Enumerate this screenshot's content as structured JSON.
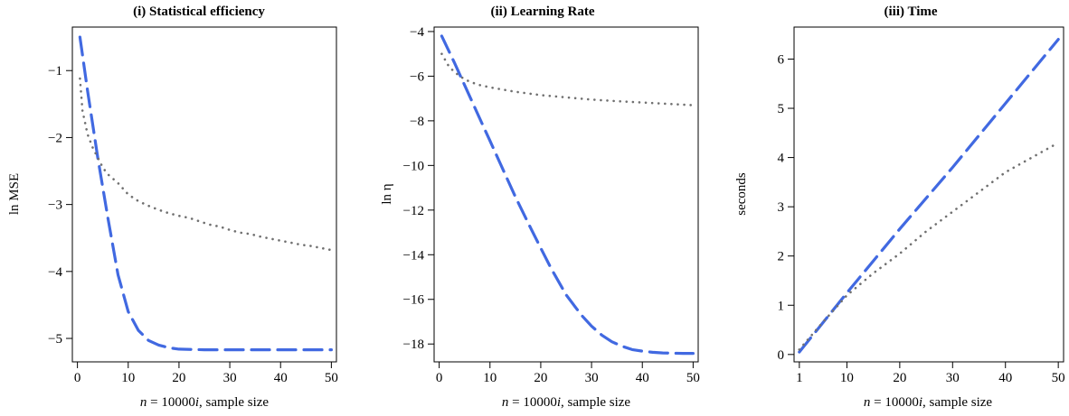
{
  "chart_data": [
    {
      "type": "line",
      "title": "(i) Statistical efficiency",
      "xlabel": {
        "pre": "n",
        "mid": " = 10000",
        "var": "i",
        "post": ", sample size"
      },
      "ylabel": "ln MSE",
      "xlim": [
        -1,
        51
      ],
      "ylim": [
        -5.35,
        -0.35
      ],
      "xticks": [
        0,
        10,
        20,
        30,
        40,
        50
      ],
      "yticks": [
        -5,
        -4,
        -3,
        -2,
        -1
      ],
      "ytick_labels": [
        "−5",
        "−4",
        "−3",
        "−2",
        "−1"
      ],
      "series": [
        {
          "style": "dashed",
          "color": "#4169e1",
          "x": [
            0.5,
            2,
            4,
            6,
            8,
            10,
            12,
            14,
            16,
            18,
            20,
            25,
            30,
            35,
            40,
            45,
            50
          ],
          "y": [
            -0.5,
            -1.3,
            -2.3,
            -3.2,
            -4.05,
            -4.6,
            -4.88,
            -5.03,
            -5.1,
            -5.14,
            -5.16,
            -5.17,
            -5.17,
            -5.17,
            -5.17,
            -5.17,
            -5.17
          ]
        },
        {
          "style": "dotted",
          "color": "#707070",
          "x": [
            0.5,
            1,
            2,
            3,
            4,
            5,
            6,
            8,
            10,
            12,
            14,
            16,
            18,
            20,
            22,
            24,
            26,
            28,
            30,
            32,
            34,
            36,
            38,
            40,
            42,
            44,
            46,
            48,
            50
          ],
          "y": [
            -1.12,
            -1.6,
            -1.95,
            -2.15,
            -2.3,
            -2.45,
            -2.55,
            -2.68,
            -2.85,
            -2.95,
            -3.02,
            -3.08,
            -3.13,
            -3.17,
            -3.2,
            -3.25,
            -3.3,
            -3.33,
            -3.38,
            -3.42,
            -3.44,
            -3.48,
            -3.51,
            -3.54,
            -3.57,
            -3.6,
            -3.62,
            -3.65,
            -3.68
          ]
        }
      ]
    },
    {
      "type": "line",
      "title": "(ii) Learning Rate",
      "xlabel": {
        "pre": "n",
        "mid": " = 10000",
        "var": "i",
        "post": ", sample size"
      },
      "ylabel": "ln η",
      "xlim": [
        -1,
        51
      ],
      "ylim": [
        -18.8,
        -3.8
      ],
      "xticks": [
        0,
        10,
        20,
        30,
        40,
        50
      ],
      "yticks": [
        -18,
        -16,
        -14,
        -12,
        -10,
        -8,
        -6,
        -4
      ],
      "ytick_labels": [
        "−18",
        "−16",
        "−14",
        "−12",
        "−10",
        "−8",
        "−6",
        "−4"
      ],
      "series": [
        {
          "style": "dashed",
          "color": "#4169e1",
          "x": [
            0.5,
            3,
            5,
            8,
            10,
            12,
            15,
            18,
            20,
            22,
            25,
            28,
            30,
            32,
            34,
            36,
            38,
            40,
            42,
            44,
            46,
            48,
            50
          ],
          "y": [
            -4.2,
            -5.4,
            -6.4,
            -7.9,
            -8.9,
            -9.9,
            -11.4,
            -12.8,
            -13.7,
            -14.6,
            -15.8,
            -16.7,
            -17.2,
            -17.6,
            -17.9,
            -18.1,
            -18.25,
            -18.32,
            -18.37,
            -18.4,
            -18.41,
            -18.42,
            -18.42
          ]
        },
        {
          "style": "dotted",
          "color": "#707070",
          "x": [
            0.5,
            2,
            4,
            6,
            8,
            10,
            15,
            20,
            25,
            30,
            35,
            40,
            45,
            50
          ],
          "y": [
            -5.0,
            -5.6,
            -6.0,
            -6.25,
            -6.4,
            -6.5,
            -6.7,
            -6.85,
            -6.95,
            -7.05,
            -7.12,
            -7.18,
            -7.24,
            -7.3
          ]
        }
      ]
    },
    {
      "type": "line",
      "title": "(iii) Time",
      "xlabel": {
        "pre": "n",
        "mid": " = 10000",
        "var": "i",
        "post": ", sample size"
      },
      "ylabel": "seconds",
      "xlim": [
        0,
        51
      ],
      "ylim": [
        -0.15,
        6.65
      ],
      "xticks": [
        1,
        10,
        20,
        30,
        40,
        50
      ],
      "yticks": [
        0,
        1,
        2,
        3,
        4,
        5,
        6
      ],
      "ytick_labels": [
        "0",
        "1",
        "2",
        "3",
        "4",
        "5",
        "6"
      ],
      "series": [
        {
          "style": "dashed",
          "color": "#4169e1",
          "x": [
            1,
            10,
            20,
            30,
            40,
            50
          ],
          "y": [
            0.05,
            1.25,
            2.55,
            3.8,
            5.1,
            6.4
          ]
        },
        {
          "style": "dotted",
          "color": "#707070",
          "x": [
            1,
            5,
            10,
            15,
            20,
            25,
            30,
            35,
            40,
            45,
            50
          ],
          "y": [
            0.1,
            0.6,
            1.2,
            1.65,
            2.05,
            2.5,
            2.9,
            3.3,
            3.7,
            4.0,
            4.3
          ]
        }
      ]
    }
  ]
}
